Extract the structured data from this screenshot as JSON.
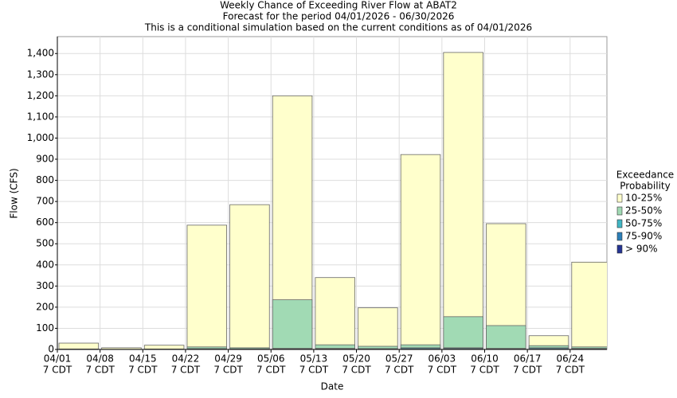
{
  "chart_data": {
    "type": "bar",
    "title": [
      "Weekly Chance of Exceeding River Flow at ABAT2",
      "Forecast for the period 04/01/2026 - 06/30/2026",
      "This is a conditional simulation based on the current conditions as of 04/01/2026"
    ],
    "x_label": "Date",
    "y_label": "Flow (CFS)",
    "categories": [
      [
        "04/01",
        "7 CDT"
      ],
      [
        "04/08",
        "7 CDT"
      ],
      [
        "04/15",
        "7 CDT"
      ],
      [
        "04/22",
        "7 CDT"
      ],
      [
        "04/29",
        "7 CDT"
      ],
      [
        "05/06",
        "7 CDT"
      ],
      [
        "05/13",
        "7 CDT"
      ],
      [
        "05/20",
        "7 CDT"
      ],
      [
        "05/27",
        "7 CDT"
      ],
      [
        "06/03",
        "7 CDT"
      ],
      [
        "06/10",
        "7 CDT"
      ],
      [
        "06/17",
        "7 CDT"
      ],
      [
        "06/24",
        "7 CDT"
      ]
    ],
    "legend_title": [
      "Exceedance",
      "Probability"
    ],
    "series": [
      {
        "name": "10-25%",
        "color": "#ffffcc",
        "values": [
          30,
          8,
          20,
          588,
          685,
          1200,
          340,
          197,
          922,
          1405,
          595,
          65,
          413
        ]
      },
      {
        "name": "25-50%",
        "color": "#a1dab4",
        "values": [
          2,
          1,
          2,
          12,
          8,
          235,
          22,
          15,
          22,
          155,
          113,
          18,
          12
        ]
      },
      {
        "name": "50-75%",
        "color": "#41b6c4",
        "values": [
          1,
          0,
          1,
          4,
          3,
          5,
          5,
          4,
          8,
          8,
          5,
          8,
          5
        ]
      },
      {
        "name": "75-90%",
        "color": "#2c7fb8",
        "values": [
          0,
          0,
          0,
          2,
          1,
          3,
          3,
          2,
          4,
          5,
          3,
          4,
          3
        ]
      },
      {
        "name": "> 90%",
        "color": "#253494",
        "values": [
          0,
          0,
          0,
          1,
          0,
          1,
          1,
          1,
          1,
          2,
          1,
          1,
          1
        ]
      }
    ],
    "ylim": [
      0,
      1480
    ],
    "yticks": [
      0,
      100,
      200,
      300,
      400,
      500,
      600,
      700,
      800,
      900,
      {
        "value": 1000,
        "label": "1,000"
      },
      {
        "value": 1100,
        "label": "1,100"
      },
      {
        "value": 1200,
        "label": "1,200"
      },
      {
        "value": 1300,
        "label": "1,300"
      },
      {
        "value": 1400,
        "label": "1,400"
      }
    ],
    "grid": true
  }
}
